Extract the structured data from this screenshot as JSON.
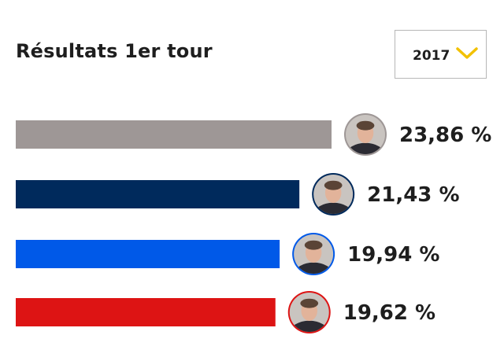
{
  "header": {
    "title": "Résultats 1er tour",
    "year_select": {
      "value": "2017",
      "icon": "chevron-down-icon",
      "icon_color": "#f2c100"
    }
  },
  "chart_data": {
    "type": "bar",
    "orientation": "horizontal",
    "title": "Résultats 1er tour",
    "categories": [
      "",
      "",
      "",
      ""
    ],
    "values": [
      23.86,
      21.43,
      19.94,
      19.62
    ],
    "labels": [
      "23,86 %",
      "21,43 %",
      "19,94 %",
      "19,62 %"
    ],
    "colors": [
      "#9e9796",
      "#002a5c",
      "#0059e8",
      "#dd1414"
    ],
    "avatar_rings": [
      "#9e9796",
      "#002a5c",
      "#0059e8",
      "#dd1414"
    ],
    "xlim": [
      0,
      23.86
    ],
    "grid": false,
    "legend": "none"
  }
}
